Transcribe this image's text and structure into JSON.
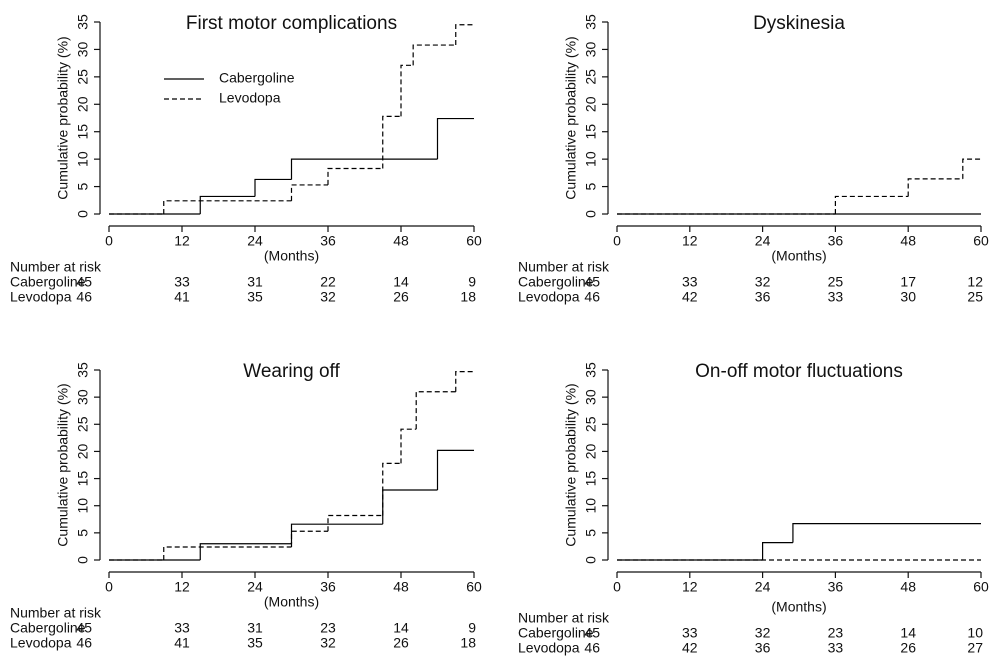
{
  "chart_data": [
    {
      "type": "step",
      "title": "First motor complications",
      "xlabel": "(Months)",
      "ylabel": "Cumulative probability (%)",
      "xlim": [
        0,
        60
      ],
      "xticks": [
        0,
        12,
        24,
        36,
        48,
        60
      ],
      "ylim": [
        0,
        35
      ],
      "yticks": [
        0,
        5,
        10,
        15,
        20,
        25,
        30,
        35
      ],
      "legend": "upper left",
      "series": [
        {
          "name": "Cabergoline",
          "color": "#000000",
          "dash": false,
          "x": [
            0,
            15,
            24,
            30,
            54
          ],
          "values": [
            0,
            3.2,
            6.3,
            10,
            17.4
          ]
        },
        {
          "name": "Levodopa",
          "color": "#000000",
          "dash": true,
          "x": [
            0,
            9,
            30,
            36,
            45,
            48,
            50,
            57
          ],
          "values": [
            0,
            2.4,
            5.3,
            8.3,
            17.8,
            27.1,
            30.8,
            34.5
          ]
        }
      ],
      "risk_table": {
        "title": "Number at risk",
        "rows": [
          {
            "name": "Cabergoline",
            "values": [
              45,
              33,
              31,
              22,
              14,
              9
            ]
          },
          {
            "name": "Levodopa",
            "values": [
              46,
              41,
              35,
              32,
              26,
              18
            ]
          }
        ]
      }
    },
    {
      "type": "step",
      "title": "Dyskinesia",
      "xlabel": "(Months)",
      "ylabel": "Cumulative probability (%)",
      "xlim": [
        0,
        60
      ],
      "xticks": [
        0,
        12,
        24,
        36,
        48,
        60
      ],
      "ylim": [
        0,
        35
      ],
      "yticks": [
        0,
        5,
        10,
        15,
        20,
        25,
        30,
        35
      ],
      "series": [
        {
          "name": "Cabergoline",
          "color": "#000000",
          "dash": false,
          "x": [
            0
          ],
          "values": [
            0
          ]
        },
        {
          "name": "Levodopa",
          "color": "#000000",
          "dash": true,
          "x": [
            0,
            36,
            48,
            57
          ],
          "values": [
            0,
            3.2,
            6.4,
            10
          ]
        }
      ],
      "risk_table": {
        "title": "Number at risk",
        "rows": [
          {
            "name": "Cabergoline",
            "values": [
              45,
              33,
              32,
              25,
              17,
              12
            ]
          },
          {
            "name": "Levodopa",
            "values": [
              46,
              42,
              36,
              33,
              30,
              25
            ]
          }
        ]
      }
    },
    {
      "type": "step",
      "title": "Wearing off",
      "xlabel": "(Months)",
      "ylabel": "Cumulative probability (%)",
      "xlim": [
        0,
        60
      ],
      "xticks": [
        0,
        12,
        24,
        36,
        48,
        60
      ],
      "ylim": [
        0,
        35
      ],
      "yticks": [
        0,
        5,
        10,
        15,
        20,
        25,
        30,
        35
      ],
      "series": [
        {
          "name": "Cabergoline",
          "color": "#000000",
          "dash": false,
          "x": [
            0,
            15,
            30,
            45,
            54
          ],
          "values": [
            0,
            3.0,
            6.6,
            12.9,
            20.2
          ]
        },
        {
          "name": "Levodopa",
          "color": "#000000",
          "dash": true,
          "x": [
            0,
            9,
            30,
            36,
            45,
            48,
            50.5,
            57
          ],
          "values": [
            0,
            2.4,
            5.3,
            8.2,
            17.8,
            24.1,
            31,
            34.7
          ]
        }
      ],
      "risk_table": {
        "title": "Number at risk",
        "rows": [
          {
            "name": "Cabergoline",
            "values": [
              45,
              33,
              31,
              23,
              14,
              9
            ]
          },
          {
            "name": "Levodopa",
            "values": [
              46,
              41,
              35,
              32,
              26,
              18
            ]
          }
        ]
      }
    },
    {
      "type": "step",
      "title": "On-off motor fluctuations",
      "xlabel": "(Months)",
      "ylabel": "Cumulative probability (%)",
      "xlim": [
        0,
        60
      ],
      "xticks": [
        0,
        12,
        24,
        36,
        48,
        60
      ],
      "ylim": [
        0,
        35
      ],
      "yticks": [
        0,
        5,
        10,
        15,
        20,
        25,
        30,
        35
      ],
      "series": [
        {
          "name": "Cabergoline",
          "color": "#000000",
          "dash": false,
          "x": [
            0,
            24,
            29
          ],
          "values": [
            0,
            3.2,
            6.7
          ]
        },
        {
          "name": "Levodopa",
          "color": "#000000",
          "dash": true,
          "x": [
            0
          ],
          "values": [
            0
          ]
        }
      ],
      "risk_table": {
        "title": "Number at risk",
        "rows": [
          {
            "name": "Cabergoline",
            "values": [
              45,
              33,
              32,
              23,
              14,
              10
            ]
          },
          {
            "name": "Levodopa",
            "values": [
              46,
              42,
              36,
              33,
              26,
              27
            ]
          }
        ]
      }
    }
  ]
}
